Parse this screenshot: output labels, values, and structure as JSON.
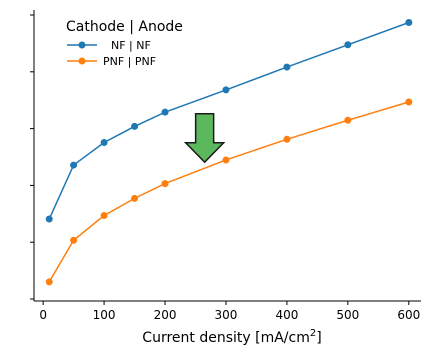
{
  "chart_data": {
    "type": "line",
    "xlabel_main": "Current density [mA/cm",
    "xlabel_sup": "2",
    "xlabel_end": "]",
    "ylabel": "",
    "xlim": [
      -15,
      620
    ],
    "ylim": [
      0,
      1
    ],
    "xticks": [
      0,
      100,
      200,
      300,
      400,
      500,
      600
    ],
    "y_tick_count": 6,
    "legend": {
      "title": "Cathode | Anode",
      "placement": "top-left"
    },
    "series": [
      {
        "name": "NF | NF",
        "color": "#1f77b4",
        "x": [
          10,
          50,
          100,
          150,
          200,
          300,
          400,
          500,
          600
        ],
        "y": [
          0.268,
          0.469,
          0.553,
          0.613,
          0.666,
          0.749,
          0.834,
          0.917,
          1.0
        ]
      },
      {
        "name": "PNF | PNF",
        "color": "#ff7f0e",
        "x": [
          10,
          50,
          100,
          150,
          200,
          300,
          400,
          500,
          600
        ],
        "y": [
          0.034,
          0.189,
          0.281,
          0.345,
          0.4,
          0.488,
          0.565,
          0.636,
          0.704
        ]
      }
    ],
    "annotation": {
      "type": "arrow",
      "direction": "down",
      "color": "#5cb85c",
      "x": 265,
      "y_top": 0.66,
      "y_bottom": 0.48
    }
  }
}
